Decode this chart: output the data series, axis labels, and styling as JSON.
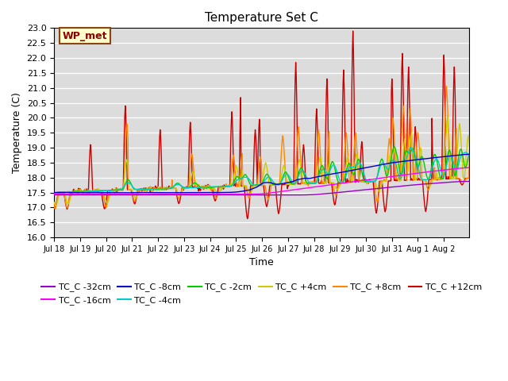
{
  "title": "Temperature Set C",
  "xlabel": "Time",
  "ylabel": "Temperature (C)",
  "ylim": [
    16.0,
    23.0
  ],
  "yticks": [
    16.0,
    16.5,
    17.0,
    17.5,
    18.0,
    18.5,
    19.0,
    19.5,
    20.0,
    20.5,
    21.0,
    21.5,
    22.0,
    22.5,
    23.0
  ],
  "bg_color": "#dcdcdc",
  "legend_label": "WP_met",
  "legend_box_color": "#ffffcc",
  "legend_box_edge": "#8b4513",
  "series_colors": {
    "TC_C -32cm": "#9900cc",
    "TC_C -16cm": "#ff00ff",
    "TC_C -8cm": "#0000cc",
    "TC_C -4cm": "#00cccc",
    "TC_C -2cm": "#00cc00",
    "TC_C +4cm": "#cccc00",
    "TC_C +8cm": "#ff8800",
    "TC_C +12cm": "#cc0000"
  },
  "n_points": 800
}
